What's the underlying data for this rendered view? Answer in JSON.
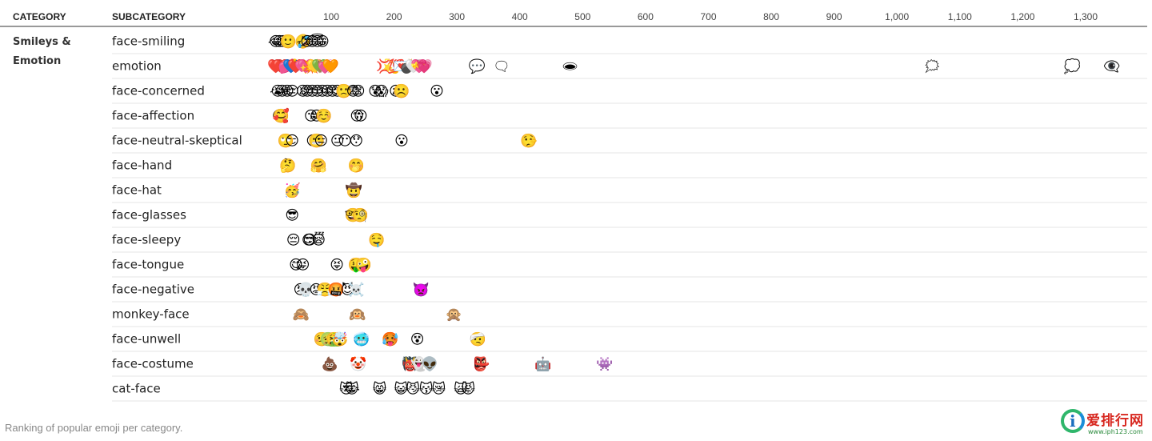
{
  "headers": {
    "category": "CATEGORY",
    "subcategory": "SUBCATEGORY"
  },
  "caption": "Ranking of popular emoji per category.",
  "watermark": {
    "logo": "爱排行网",
    "url": "www.iph123.com"
  },
  "chart_data": {
    "type": "scatter",
    "xlim": [
      0,
      1380
    ],
    "x_ticks": [
      100,
      200,
      300,
      400,
      500,
      600,
      700,
      800,
      900,
      1000,
      1100,
      1200,
      1300
    ],
    "x_tick_labels": [
      "100",
      "200",
      "300",
      "400",
      "500",
      "600",
      "700",
      "800",
      "900",
      "1,000",
      "1,100",
      "1,200",
      "1,300"
    ],
    "grid": "horizontal row separators",
    "category": "Smileys & Emotion",
    "rows": [
      {
        "subcategory": "face-smiling",
        "points": [
          {
            "x": 12,
            "emoji": "😂"
          },
          {
            "x": 18,
            "emoji": "😅"
          },
          {
            "x": 24,
            "emoji": "😊"
          },
          {
            "x": 32,
            "emoji": "🙂"
          },
          {
            "x": 55,
            "emoji": "🤣"
          },
          {
            "x": 62,
            "emoji": "😉"
          },
          {
            "x": 70,
            "emoji": "😃"
          },
          {
            "x": 78,
            "emoji": "😇"
          },
          {
            "x": 86,
            "emoji": "😁"
          }
        ]
      },
      {
        "subcategory": "emotion",
        "points": [
          {
            "x": 12,
            "emoji": "❤️"
          },
          {
            "x": 20,
            "emoji": "💔"
          },
          {
            "x": 29,
            "emoji": "💕"
          },
          {
            "x": 36,
            "emoji": "💙"
          },
          {
            "x": 44,
            "emoji": "❤️"
          },
          {
            "x": 52,
            "emoji": "💘"
          },
          {
            "x": 60,
            "emoji": "💖"
          },
          {
            "x": 67,
            "emoji": "💥"
          },
          {
            "x": 74,
            "emoji": "💛"
          },
          {
            "x": 82,
            "emoji": "💚"
          },
          {
            "x": 90,
            "emoji": "💓"
          },
          {
            "x": 99,
            "emoji": "🧡"
          },
          {
            "x": 185,
            "emoji": "💢"
          },
          {
            "x": 195,
            "emoji": "💫"
          },
          {
            "x": 204,
            "emoji": "💯"
          },
          {
            "x": 212,
            "emoji": "💌"
          },
          {
            "x": 222,
            "emoji": "💣"
          },
          {
            "x": 231,
            "emoji": "🤍"
          },
          {
            "x": 240,
            "emoji": "💝"
          },
          {
            "x": 248,
            "emoji": "💗"
          },
          {
            "x": 332,
            "emoji": "💬"
          },
          {
            "x": 371,
            "emoji": "🗨"
          },
          {
            "x": 480,
            "emoji": "🕳"
          },
          {
            "x": 1056,
            "emoji": "🗯"
          },
          {
            "x": 1279,
            "emoji": "💭"
          },
          {
            "x": 1342,
            "emoji": "👁‍🗨"
          }
        ]
      },
      {
        "subcategory": "face-concerned",
        "points": [
          {
            "x": 15,
            "emoji": "😭"
          },
          {
            "x": 22,
            "emoji": "😢"
          },
          {
            "x": 30,
            "emoji": "😩"
          },
          {
            "x": 38,
            "emoji": "😔"
          },
          {
            "x": 55,
            "emoji": "😫"
          },
          {
            "x": 62,
            "emoji": "😞"
          },
          {
            "x": 70,
            "emoji": "😣"
          },
          {
            "x": 78,
            "emoji": "😓"
          },
          {
            "x": 86,
            "emoji": "😥"
          },
          {
            "x": 94,
            "emoji": "😖"
          },
          {
            "x": 102,
            "emoji": "😟"
          },
          {
            "x": 110,
            "emoji": "😕"
          },
          {
            "x": 120,
            "emoji": "🙁"
          },
          {
            "x": 135,
            "emoji": "😨"
          },
          {
            "x": 143,
            "emoji": "😧"
          },
          {
            "x": 170,
            "emoji": "😰"
          },
          {
            "x": 180,
            "emoji": "😱"
          },
          {
            "x": 203,
            "emoji": "😦"
          },
          {
            "x": 212,
            "emoji": "☹️"
          },
          {
            "x": 268,
            "emoji": "😮"
          }
        ]
      },
      {
        "subcategory": "face-affection",
        "points": [
          {
            "x": 17,
            "emoji": "😍"
          },
          {
            "x": 20,
            "emoji": "🥰"
          },
          {
            "x": 68,
            "emoji": "😘"
          },
          {
            "x": 77,
            "emoji": "😚"
          },
          {
            "x": 88,
            "emoji": "☺️"
          },
          {
            "x": 141,
            "emoji": "😙"
          },
          {
            "x": 147,
            "emoji": "😗"
          }
        ]
      },
      {
        "subcategory": "face-neutral-skeptical",
        "points": [
          {
            "x": 28,
            "emoji": "🙄"
          },
          {
            "x": 38,
            "emoji": "😏"
          },
          {
            "x": 71,
            "emoji": "😒"
          },
          {
            "x": 77,
            "emoji": "😬"
          },
          {
            "x": 84,
            "emoji": "😑"
          },
          {
            "x": 110,
            "emoji": "😐"
          },
          {
            "x": 122,
            "emoji": "😶"
          },
          {
            "x": 140,
            "emoji": "😯"
          },
          {
            "x": 212,
            "emoji": "😮"
          },
          {
            "x": 414,
            "emoji": "🤥"
          }
        ]
      },
      {
        "subcategory": "face-hand",
        "points": [
          {
            "x": 31,
            "emoji": "🤔"
          },
          {
            "x": 80,
            "emoji": "🤗"
          },
          {
            "x": 140,
            "emoji": "🤭"
          }
        ]
      },
      {
        "subcategory": "face-hat",
        "points": [
          {
            "x": 38,
            "emoji": "🥳"
          },
          {
            "x": 136,
            "emoji": "🤠"
          }
        ]
      },
      {
        "subcategory": "face-glasses",
        "points": [
          {
            "x": 38,
            "emoji": "😎"
          },
          {
            "x": 135,
            "emoji": "🤓"
          },
          {
            "x": 146,
            "emoji": "🧐"
          }
        ]
      },
      {
        "subcategory": "face-sleepy",
        "points": [
          {
            "x": 40,
            "emoji": "😔"
          },
          {
            "x": 64,
            "emoji": "😌"
          },
          {
            "x": 72,
            "emoji": "😴"
          },
          {
            "x": 80,
            "emoji": "😪"
          },
          {
            "x": 172,
            "emoji": "🤤"
          }
        ]
      },
      {
        "subcategory": "face-tongue",
        "points": [
          {
            "x": 44,
            "emoji": "😋"
          },
          {
            "x": 55,
            "emoji": "😜"
          },
          {
            "x": 109,
            "emoji": "😝"
          },
          {
            "x": 140,
            "emoji": "🤑"
          },
          {
            "x": 151,
            "emoji": "🤪"
          }
        ]
      },
      {
        "subcategory": "face-negative",
        "points": [
          {
            "x": 51,
            "emoji": "😠"
          },
          {
            "x": 60,
            "emoji": "💀"
          },
          {
            "x": 76,
            "emoji": "😡"
          },
          {
            "x": 90,
            "emoji": "😤"
          },
          {
            "x": 108,
            "emoji": "🤬"
          },
          {
            "x": 126,
            "emoji": "😈"
          },
          {
            "x": 140,
            "emoji": "☠️"
          },
          {
            "x": 243,
            "emoji": "👿"
          }
        ]
      },
      {
        "subcategory": "monkey-face",
        "points": [
          {
            "x": 52,
            "emoji": "🙈"
          },
          {
            "x": 142,
            "emoji": "🙉"
          },
          {
            "x": 295,
            "emoji": "🙊"
          }
        ]
      },
      {
        "subcategory": "face-unwell",
        "points": [
          {
            "x": 85,
            "emoji": "🤒"
          },
          {
            "x": 95,
            "emoji": "🤢"
          },
          {
            "x": 105,
            "emoji": "🤮"
          },
          {
            "x": 114,
            "emoji": "🤯"
          },
          {
            "x": 148,
            "emoji": "🥶"
          },
          {
            "x": 194,
            "emoji": "🥵"
          },
          {
            "x": 237,
            "emoji": "😵"
          },
          {
            "x": 333,
            "emoji": "🤕"
          }
        ]
      },
      {
        "subcategory": "face-costume",
        "points": [
          {
            "x": 98,
            "emoji": "💩"
          },
          {
            "x": 143,
            "emoji": "🤡"
          },
          {
            "x": 226,
            "emoji": "👹"
          },
          {
            "x": 240,
            "emoji": "👻"
          },
          {
            "x": 257,
            "emoji": "👽"
          },
          {
            "x": 339,
            "emoji": "👺"
          },
          {
            "x": 437,
            "emoji": "🤖"
          },
          {
            "x": 535,
            "emoji": "👾"
          }
        ]
      },
      {
        "subcategory": "cat-face",
        "points": [
          {
            "x": 124,
            "emoji": "😻"
          },
          {
            "x": 133,
            "emoji": "😹"
          },
          {
            "x": 177,
            "emoji": "😸"
          },
          {
            "x": 211,
            "emoji": "😺"
          },
          {
            "x": 230,
            "emoji": "😼"
          },
          {
            "x": 251,
            "emoji": "😽"
          },
          {
            "x": 271,
            "emoji": "😿"
          },
          {
            "x": 306,
            "emoji": "🙀"
          },
          {
            "x": 318,
            "emoji": "😾"
          }
        ]
      }
    ]
  }
}
